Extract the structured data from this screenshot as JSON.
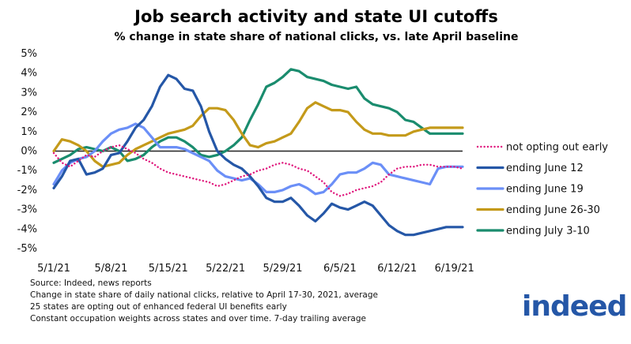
{
  "chart_data": {
    "type": "line",
    "title": "Job search activity and state UI cutoffs",
    "subtitle": "% change in state share of national clicks, vs. late April baseline",
    "xlabel": "",
    "ylabel": "",
    "ylim": [
      -5,
      5
    ],
    "yticks": [
      "5%",
      "4%",
      "3%",
      "2%",
      "1%",
      "0%",
      "-1%",
      "-2%",
      "-3%",
      "-4%",
      "-5%"
    ],
    "ytick_values": [
      5,
      4,
      3,
      2,
      1,
      0,
      -1,
      -2,
      -3,
      -4,
      -5
    ],
    "xlim": [
      0,
      50
    ],
    "xticks": [
      "5/1/21",
      "5/8/21",
      "5/15/21",
      "5/22/21",
      "5/29/21",
      "6/5/21",
      "6/12/21",
      "6/19/21"
    ],
    "xtick_values": [
      0,
      7,
      14,
      21,
      28,
      35,
      42,
      49
    ],
    "x": [
      0,
      1,
      2,
      3,
      4,
      5,
      6,
      7,
      8,
      9,
      10,
      11,
      12,
      13,
      14,
      15,
      16,
      17,
      18,
      19,
      20,
      21,
      22,
      23,
      24,
      25,
      26,
      27,
      28,
      29,
      30,
      31,
      32,
      33,
      34,
      35,
      36,
      37,
      38,
      39,
      40,
      41,
      42,
      43,
      44,
      45,
      46,
      47,
      48,
      49,
      50
    ],
    "series": [
      {
        "name": "not opting out early",
        "color": "#e0197e",
        "style": "dotted",
        "values": [
          -0.1,
          -0.6,
          -0.8,
          -0.5,
          -0.2,
          -0.3,
          0.0,
          0.2,
          0.3,
          0.1,
          -0.1,
          -0.4,
          -0.6,
          -0.9,
          -1.1,
          -1.2,
          -1.3,
          -1.4,
          -1.5,
          -1.6,
          -1.8,
          -1.7,
          -1.5,
          -1.3,
          -1.2,
          -1.0,
          -0.9,
          -0.7,
          -0.6,
          -0.7,
          -0.9,
          -1.0,
          -1.3,
          -1.6,
          -2.1,
          -2.3,
          -2.2,
          -2.0,
          -1.9,
          -1.8,
          -1.6,
          -1.2,
          -0.9,
          -0.8,
          -0.8,
          -0.7,
          -0.7,
          -0.8,
          -0.8,
          -0.8,
          -0.9
        ]
      },
      {
        "name": "ending June 12",
        "color": "#2557a7",
        "style": "solid",
        "values": [
          -1.9,
          -1.3,
          -0.5,
          -0.4,
          -1.2,
          -1.1,
          -0.9,
          -0.2,
          -0.1,
          0.5,
          1.2,
          1.6,
          2.3,
          3.3,
          3.9,
          3.7,
          3.2,
          3.1,
          2.3,
          1.0,
          0.0,
          -0.4,
          -0.7,
          -0.9,
          -1.3,
          -1.8,
          -2.4,
          -2.6,
          -2.6,
          -2.4,
          -2.8,
          -3.3,
          -3.6,
          -3.2,
          -2.7,
          -2.9,
          -3.0,
          -2.8,
          -2.6,
          -2.8,
          -3.3,
          -3.8,
          -4.1,
          -4.3,
          -4.3,
          -4.2,
          -4.1,
          -4.0,
          -3.9,
          -3.9,
          -3.9
        ]
      },
      {
        "name": "ending June 19",
        "color": "#6b8ff7",
        "style": "solid",
        "values": [
          -1.7,
          -1.0,
          -0.6,
          -0.4,
          -0.3,
          0.0,
          0.5,
          0.9,
          1.1,
          1.2,
          1.4,
          1.2,
          0.7,
          0.2,
          0.2,
          0.2,
          0.1,
          -0.1,
          -0.3,
          -0.5,
          -1.0,
          -1.3,
          -1.4,
          -1.5,
          -1.4,
          -1.7,
          -2.1,
          -2.1,
          -2.0,
          -1.8,
          -1.7,
          -1.9,
          -2.2,
          -2.1,
          -1.7,
          -1.2,
          -1.1,
          -1.1,
          -0.9,
          -0.6,
          -0.7,
          -1.2,
          -1.3,
          -1.4,
          -1.5,
          -1.6,
          -1.7,
          -0.9,
          -0.8,
          -0.8,
          -0.8
        ]
      },
      {
        "name": "ending June 26-30",
        "color": "#c49a1a",
        "style": "solid",
        "values": [
          0.0,
          0.6,
          0.5,
          0.3,
          0.0,
          -0.5,
          -0.8,
          -0.7,
          -0.6,
          -0.2,
          0.1,
          0.3,
          0.5,
          0.7,
          0.9,
          1.0,
          1.1,
          1.3,
          1.8,
          2.2,
          2.2,
          2.1,
          1.6,
          0.9,
          0.3,
          0.2,
          0.4,
          0.5,
          0.7,
          0.9,
          1.5,
          2.2,
          2.5,
          2.3,
          2.1,
          2.1,
          2.0,
          1.5,
          1.1,
          0.9,
          0.9,
          0.8,
          0.8,
          0.8,
          1.0,
          1.1,
          1.2,
          1.2,
          1.2,
          1.2,
          1.2
        ]
      },
      {
        "name": "ending July 3-10",
        "color": "#1a8c6e",
        "style": "solid",
        "values": [
          -0.6,
          -0.4,
          -0.2,
          0.1,
          0.2,
          0.1,
          0.0,
          0.2,
          0.0,
          -0.5,
          -0.4,
          -0.2,
          0.2,
          0.5,
          0.7,
          0.7,
          0.5,
          0.2,
          -0.2,
          -0.3,
          -0.2,
          0.0,
          0.3,
          0.7,
          1.6,
          2.4,
          3.3,
          3.5,
          3.8,
          4.2,
          4.1,
          3.8,
          3.7,
          3.6,
          3.4,
          3.3,
          3.2,
          3.3,
          2.7,
          2.4,
          2.3,
          2.2,
          2.0,
          1.6,
          1.5,
          1.2,
          0.9,
          0.9,
          0.9,
          0.9,
          0.9
        ]
      }
    ],
    "legend_position": "right"
  },
  "notes": [
    "Source: Indeed, news reports",
    "Change in state share of daily national clicks, relative to April 17-30, 2021, average",
    "25 states are opting out of enhanced federal UI benefits early",
    "Constant occupation weights across states and over time. 7-day trailing average"
  ],
  "logo": {
    "text": "indeed"
  }
}
